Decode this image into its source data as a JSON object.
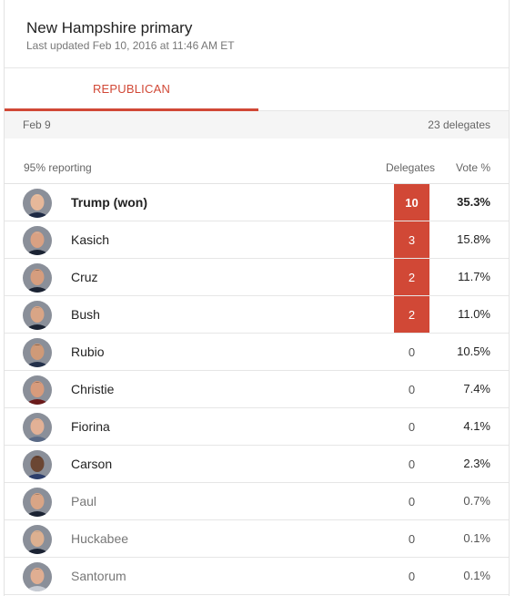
{
  "header": {
    "title": "New Hampshire primary",
    "subtitle": "Last updated Feb 10, 2016 at 11:46 AM ET"
  },
  "tabs": [
    {
      "label": "REPUBLICAN",
      "active": true
    }
  ],
  "datebar": {
    "date": "Feb 9",
    "delegates": "23 delegates"
  },
  "columns": {
    "reporting": "95% reporting",
    "delegates": "Delegates",
    "vote": "Vote %"
  },
  "colors": {
    "accent": "#d14836"
  },
  "candidates": [
    {
      "name": "Trump (won)",
      "delegates": "10",
      "vote": "35.3%",
      "winner": true,
      "skin": "#e6b89a",
      "hair": "#e8d6b0",
      "suit": "#1e2a44"
    },
    {
      "name": "Kasich",
      "delegates": "3",
      "vote": "15.8%",
      "winner": false,
      "skin": "#d9a183",
      "hair": "#c9c9c9",
      "suit": "#1b2333"
    },
    {
      "name": "Cruz",
      "delegates": "2",
      "vote": "11.7%",
      "winner": false,
      "skin": "#d59d7e",
      "hair": "#3a2a22",
      "suit": "#1b2333"
    },
    {
      "name": "Bush",
      "delegates": "2",
      "vote": "11.0%",
      "winner": false,
      "skin": "#d9a586",
      "hair": "#7a6a5e",
      "suit": "#1b2333"
    },
    {
      "name": "Rubio",
      "delegates": "0",
      "vote": "10.5%",
      "winner": false,
      "skin": "#cf9a78",
      "hair": "#2b2019",
      "suit": "#23304a"
    },
    {
      "name": "Christie",
      "delegates": "0",
      "vote": "7.4%",
      "winner": false,
      "skin": "#d79b7c",
      "hair": "#3b2d26",
      "suit": "#6b1a1a"
    },
    {
      "name": "Fiorina",
      "delegates": "0",
      "vote": "4.1%",
      "winner": false,
      "skin": "#e2b196",
      "hair": "#b58c5e",
      "suit": "#5a6a86"
    },
    {
      "name": "Carson",
      "delegates": "0",
      "vote": "2.3%",
      "winner": false,
      "skin": "#6b4633",
      "hair": "#2a1d16",
      "suit": "#2d3e6b"
    },
    {
      "name": "Paul",
      "delegates": "0",
      "vote": "0.7%",
      "winner": false,
      "skin": "#d9a586",
      "hair": "#5e4634",
      "suit": "#1b2333"
    },
    {
      "name": "Huckabee",
      "delegates": "0",
      "vote": "0.1%",
      "winner": false,
      "skin": "#ddb090",
      "hair": "#9a8a7c",
      "suit": "#1b2333"
    },
    {
      "name": "Santorum",
      "delegates": "0",
      "vote": "0.1%",
      "winner": false,
      "skin": "#e0ae92",
      "hair": "#4a3a2e",
      "suit": "#c8ccd4"
    }
  ]
}
